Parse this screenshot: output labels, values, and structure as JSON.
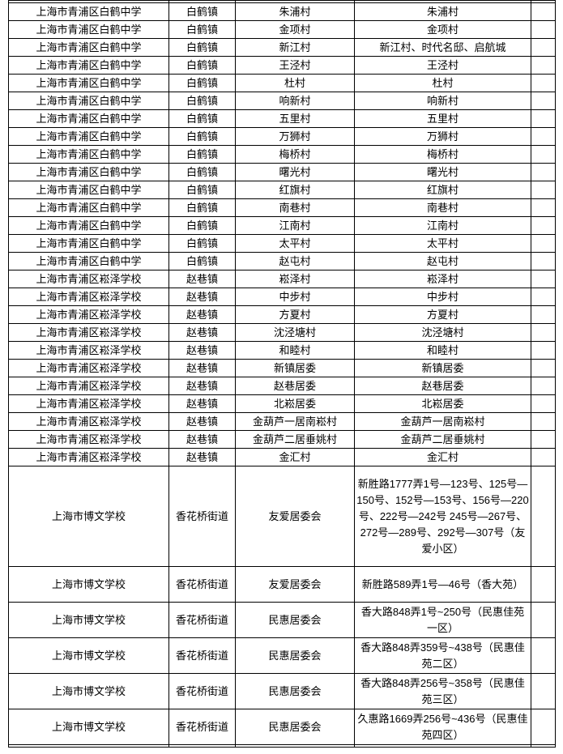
{
  "colors": {
    "border": "#000000",
    "text": "#000000",
    "background": "#ffffff"
  },
  "table": {
    "rows": [
      {
        "school": "上海市青浦区白鹤中学",
        "town": "白鹤镇",
        "committee": "朱浦村",
        "detail": "朱浦村",
        "extra": ""
      },
      {
        "school": "上海市青浦区白鹤中学",
        "town": "白鹤镇",
        "committee": "金项村",
        "detail": "金项村",
        "extra": ""
      },
      {
        "school": "上海市青浦区白鹤中学",
        "town": "白鹤镇",
        "committee": "新江村",
        "detail": "新江村、时代名邸、启航城",
        "extra": ""
      },
      {
        "school": "上海市青浦区白鹤中学",
        "town": "白鹤镇",
        "committee": "王泾村",
        "detail": "王泾村",
        "extra": ""
      },
      {
        "school": "上海市青浦区白鹤中学",
        "town": "白鹤镇",
        "committee": "杜村",
        "detail": "杜村",
        "extra": ""
      },
      {
        "school": "上海市青浦区白鹤中学",
        "town": "白鹤镇",
        "committee": "响新村",
        "detail": "响新村",
        "extra": ""
      },
      {
        "school": "上海市青浦区白鹤中学",
        "town": "白鹤镇",
        "committee": "五里村",
        "detail": "五里村",
        "extra": ""
      },
      {
        "school": "上海市青浦区白鹤中学",
        "town": "白鹤镇",
        "committee": "万狮村",
        "detail": "万狮村",
        "extra": ""
      },
      {
        "school": "上海市青浦区白鹤中学",
        "town": "白鹤镇",
        "committee": "梅桥村",
        "detail": "梅桥村",
        "extra": ""
      },
      {
        "school": "上海市青浦区白鹤中学",
        "town": "白鹤镇",
        "committee": "曙光村",
        "detail": "曙光村",
        "extra": ""
      },
      {
        "school": "上海市青浦区白鹤中学",
        "town": "白鹤镇",
        "committee": "红旗村",
        "detail": "红旗村",
        "extra": ""
      },
      {
        "school": "上海市青浦区白鹤中学",
        "town": "白鹤镇",
        "committee": "南巷村",
        "detail": "南巷村",
        "extra": ""
      },
      {
        "school": "上海市青浦区白鹤中学",
        "town": "白鹤镇",
        "committee": "江南村",
        "detail": "江南村",
        "extra": ""
      },
      {
        "school": "上海市青浦区白鹤中学",
        "town": "白鹤镇",
        "committee": "太平村",
        "detail": "太平村",
        "extra": ""
      },
      {
        "school": "上海市青浦区白鹤中学",
        "town": "白鹤镇",
        "committee": "赵屯村",
        "detail": "赵屯村",
        "extra": ""
      },
      {
        "school": "上海市青浦区崧泽学校",
        "town": "赵巷镇",
        "committee": "崧泽村",
        "detail": "崧泽村",
        "extra": ""
      },
      {
        "school": "上海市青浦区崧泽学校",
        "town": "赵巷镇",
        "committee": "中步村",
        "detail": "中步村",
        "extra": ""
      },
      {
        "school": "上海市青浦区崧泽学校",
        "town": "赵巷镇",
        "committee": "方夏村",
        "detail": "方夏村",
        "extra": ""
      },
      {
        "school": "上海市青浦区崧泽学校",
        "town": "赵巷镇",
        "committee": "沈泾塘村",
        "detail": "沈泾塘村",
        "extra": ""
      },
      {
        "school": "上海市青浦区崧泽学校",
        "town": "赵巷镇",
        "committee": "和睦村",
        "detail": "和睦村",
        "extra": ""
      },
      {
        "school": "上海市青浦区崧泽学校",
        "town": "赵巷镇",
        "committee": "新镇居委",
        "detail": "新镇居委",
        "extra": ""
      },
      {
        "school": "上海市青浦区崧泽学校",
        "town": "赵巷镇",
        "committee": "赵巷居委",
        "detail": "赵巷居委",
        "extra": ""
      },
      {
        "school": "上海市青浦区崧泽学校",
        "town": "赵巷镇",
        "committee": "北崧居委",
        "detail": "北崧居委",
        "extra": ""
      },
      {
        "school": "上海市青浦区崧泽学校",
        "town": "赵巷镇",
        "committee": "金葫芦一居南崧村",
        "detail": "金葫芦一居南崧村",
        "extra": ""
      },
      {
        "school": "上海市青浦区崧泽学校",
        "town": "赵巷镇",
        "committee": "金葫芦二居垂姚村",
        "detail": "金葫芦二居垂姚村",
        "extra": ""
      },
      {
        "school": "上海市青浦区崧泽学校",
        "town": "赵巷镇",
        "committee": "金汇村",
        "detail": "金汇村",
        "extra": ""
      },
      {
        "school": "上海市博文学校",
        "town": "香花桥街道",
        "committee": "友爱居委会",
        "detail": "新胜路1777弄1号—123号、125号—150号、152号—153号、156号—220号、222号—242号 245号—267号、272号—289号、292号—307号（友爱小区）",
        "extra": ""
      },
      {
        "school": "上海市博文学校",
        "town": "香花桥街道",
        "committee": "友爱居委会",
        "detail": "新胜路589弄1号—46号（香大苑）",
        "extra": ""
      },
      {
        "school": "上海市博文学校",
        "town": "香花桥街道",
        "committee": "民惠居委会",
        "detail": "香大路848弄1号~250号（民惠佳苑一区）",
        "extra": ""
      },
      {
        "school": "上海市博文学校",
        "town": "香花桥街道",
        "committee": "民惠居委会",
        "detail": "香大路848弄359号~438号（民惠佳苑二区）",
        "extra": ""
      },
      {
        "school": "上海市博文学校",
        "town": "香花桥街道",
        "committee": "民惠居委会",
        "detail": "香大路848弄256号~358号（民惠佳苑三区）",
        "extra": ""
      },
      {
        "school": "上海市博文学校",
        "town": "香花桥街道",
        "committee": "民惠居委会",
        "detail": "久惠路1669弄256号~436号（民惠佳苑四区）",
        "extra": ""
      }
    ]
  }
}
